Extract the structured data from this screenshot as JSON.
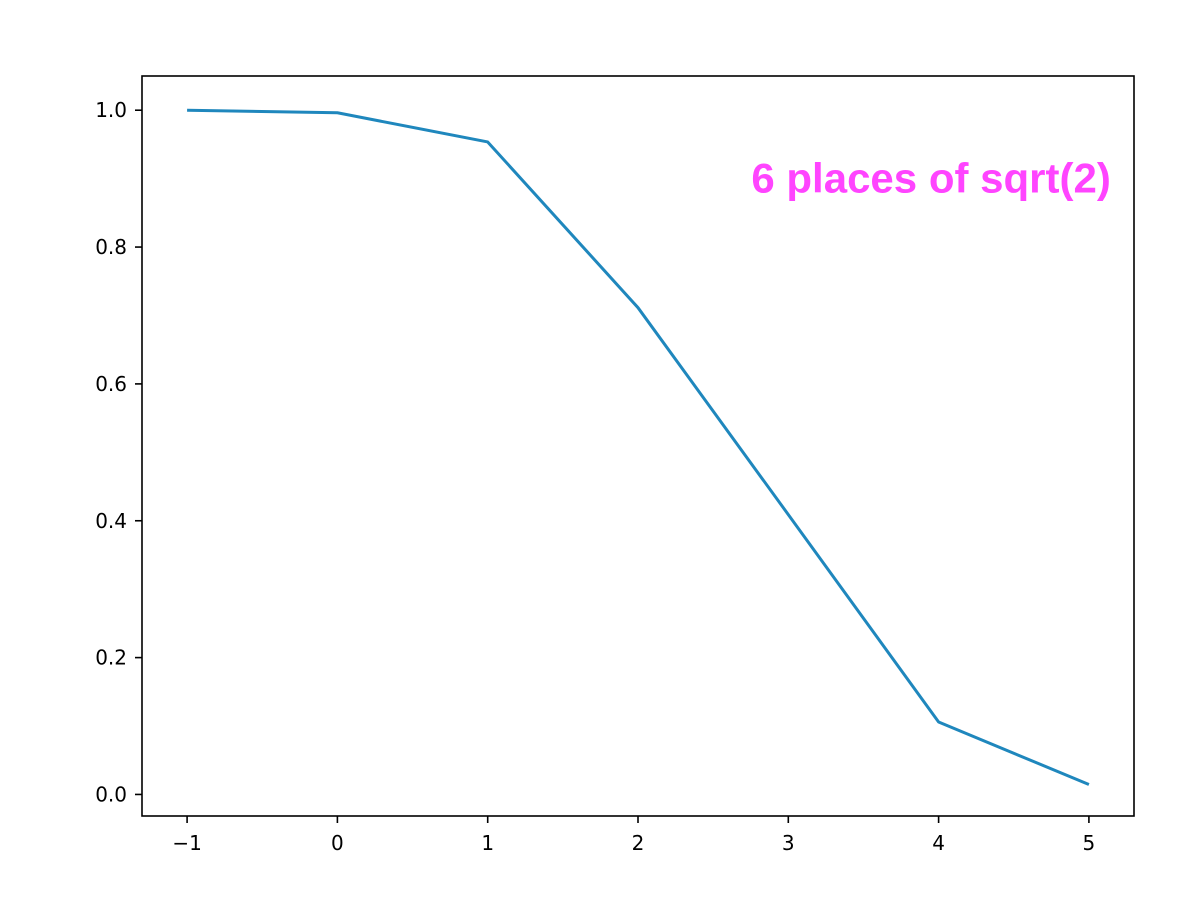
{
  "chart_data": {
    "type": "line",
    "title": "",
    "xlabel": "",
    "ylabel": "",
    "x": [
      -1,
      0,
      1,
      2,
      3,
      4,
      5
    ],
    "series": [
      {
        "values": [
          1.0,
          0.9963,
          0.9536,
          0.7114,
          0.409,
          0.1059,
          0.0145
        ],
        "color": "#1f87bd"
      }
    ],
    "xlim": [
      -1.3,
      5.3
    ],
    "ylim": [
      -0.0315,
      1.05
    ],
    "xticks": [
      -1,
      0,
      1,
      2,
      3,
      4,
      5
    ],
    "xtick_labels": [
      "−1",
      "0",
      "1",
      "2",
      "3",
      "4",
      "5"
    ],
    "yticks": [
      0.0,
      0.2,
      0.4,
      0.6,
      0.8,
      1.0
    ],
    "ytick_labels": [
      "0.0",
      "0.2",
      "0.4",
      "0.6",
      "0.8",
      "1.0"
    ],
    "grid": false,
    "annotation": {
      "text": "6 places of sqrt(2)",
      "x": 3.95,
      "y": 0.88,
      "color": "#ff44ff"
    }
  }
}
